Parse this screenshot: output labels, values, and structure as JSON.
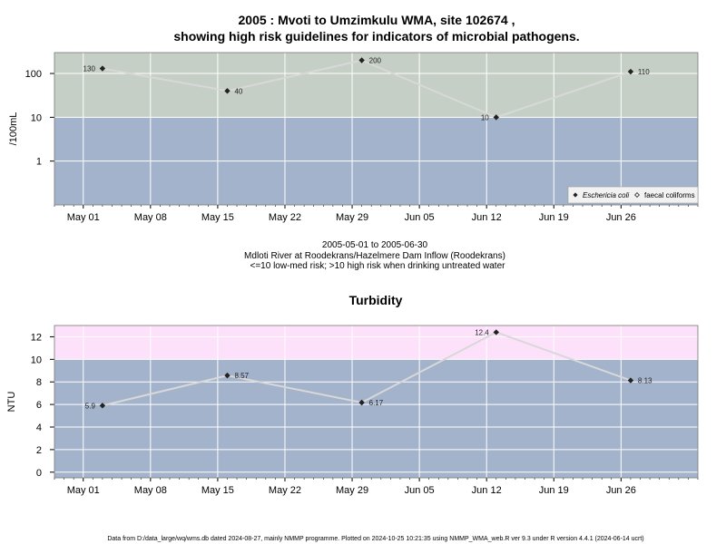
{
  "header": {
    "title_line1": "2005 : Mvoti to Umzimkulu WMA, site 102674 ,",
    "title_line2": "showing high risk guidelines for indicators of microbial pathogens."
  },
  "caption": {
    "line1": "2005-05-01 to 2005-06-30",
    "line2": "Mdloti River at Roodekrans/Hazelmere Dam Inflow (Roodekrans)",
    "line3": "<=10 low-med risk; >10 high risk when drinking untreated water"
  },
  "footer": {
    "text": "Data from D:/data_large/wq/wms.db dated 2024-08-27, mainly NMMP programme. Plotted on 2024-10-25 10:21:35 using NMMP_WMA_web.R ver 9.3 under R version 4.4.1 (2024-06-14 ucrt)"
  },
  "colors": {
    "band_low": "#a3b3cb",
    "band_high_microbial": "#c6cfc6",
    "band_high_turbidity": "#fde1fb",
    "series_line": "#d8d8d8",
    "point": "#222222",
    "grid": "#ffffff"
  },
  "chart_data": [
    {
      "type": "line",
      "ylabel": "/100mL",
      "yscale": "log",
      "ylim": [
        0.1,
        300
      ],
      "yticks": [
        1,
        10,
        100
      ],
      "ytick_labels": [
        "1",
        "10",
        "100"
      ],
      "threshold": 10,
      "xlim": [
        "2005-04-28",
        "2005-07-04"
      ],
      "xticks": [
        "2005-05-01",
        "2005-05-08",
        "2005-05-15",
        "2005-05-22",
        "2005-05-29",
        "2005-06-05",
        "2005-06-12",
        "2005-06-19",
        "2005-06-26"
      ],
      "xtick_labels": [
        "May 01",
        "May 08",
        "May 15",
        "May 22",
        "May 29",
        "Jun 05",
        "Jun 12",
        "Jun 19",
        "Jun 26"
      ],
      "grid": true,
      "legend_position": "bottom-right",
      "series": [
        {
          "name": "Eschericia coli",
          "marker": "diamond",
          "x": [
            "2005-05-03",
            "2005-05-16",
            "2005-05-30",
            "2005-06-13",
            "2005-06-27"
          ],
          "values": [
            130,
            40,
            200,
            10,
            110
          ],
          "labels": [
            "130",
            "40",
            "200",
            "10",
            "110"
          ]
        },
        {
          "name": "faecal coliforms",
          "marker": "open-diamond",
          "x": [],
          "values": [],
          "labels": []
        }
      ]
    },
    {
      "type": "line",
      "title": "Turbidity",
      "ylabel": "NTU",
      "ylim": [
        -0.5,
        13
      ],
      "yticks": [
        0,
        2,
        4,
        6,
        8,
        10,
        12
      ],
      "ytick_labels": [
        "0",
        "2",
        "4",
        "6",
        "8",
        "10",
        "12"
      ],
      "threshold": 10,
      "xlim": [
        "2005-04-28",
        "2005-07-04"
      ],
      "xticks": [
        "2005-05-01",
        "2005-05-08",
        "2005-05-15",
        "2005-05-22",
        "2005-05-29",
        "2005-06-05",
        "2005-06-12",
        "2005-06-19",
        "2005-06-26"
      ],
      "xtick_labels": [
        "May 01",
        "May 08",
        "May 15",
        "May 22",
        "May 29",
        "Jun 05",
        "Jun 12",
        "Jun 19",
        "Jun 26"
      ],
      "grid": true,
      "series": [
        {
          "marker": "diamond",
          "x": [
            "2005-05-03",
            "2005-05-16",
            "2005-05-30",
            "2005-06-13",
            "2005-06-27"
          ],
          "values": [
            5.9,
            8.57,
            6.17,
            12.4,
            8.13
          ],
          "labels": [
            "5.9",
            "8.57",
            "6.17",
            "12.4",
            "8.13"
          ]
        }
      ]
    }
  ]
}
